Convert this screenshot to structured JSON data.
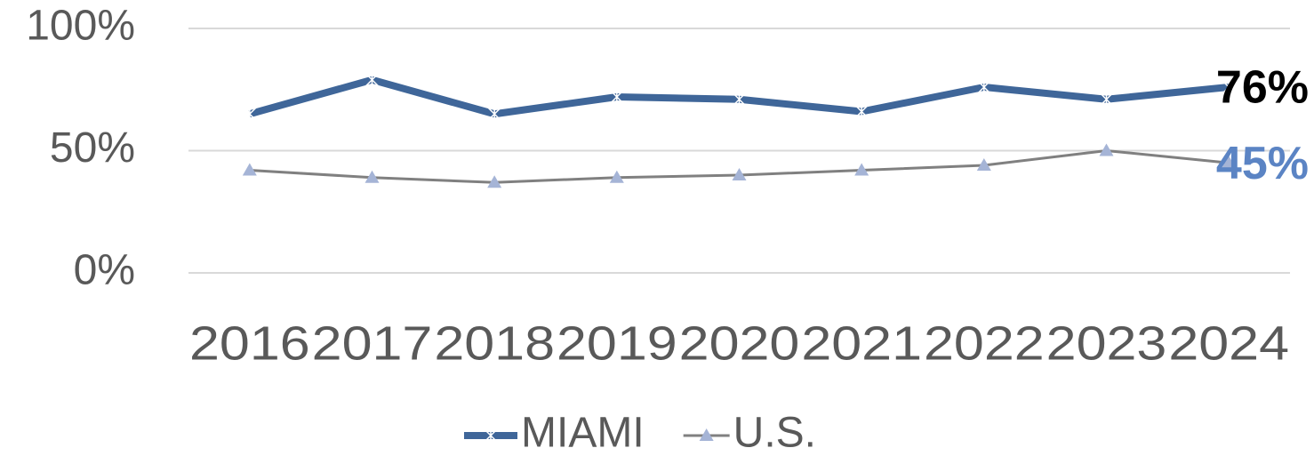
{
  "chart_data": {
    "type": "line",
    "categories": [
      "2016",
      "2017",
      "2018",
      "2019",
      "2020",
      "2021",
      "2022",
      "2023",
      "2024"
    ],
    "series": [
      {
        "name": "MIAMI",
        "color": "#3f6699",
        "marker": "star",
        "values": [
          65,
          79,
          65,
          72,
          71,
          66,
          76,
          71,
          76
        ],
        "value_labels": [
          null,
          null,
          null,
          null,
          null,
          null,
          null,
          null,
          "76%"
        ],
        "label_color": "#000000"
      },
      {
        "name": "U.S.",
        "color": "#808080",
        "marker_color": "#a5b4d6",
        "marker": "triangle",
        "values": [
          42,
          39,
          37,
          39,
          40,
          42,
          44,
          50,
          45
        ],
        "value_labels": [
          null,
          null,
          null,
          null,
          null,
          null,
          null,
          null,
          "45%"
        ],
        "label_color": "#5b84c4"
      }
    ],
    "ylim": [
      0,
      100
    ],
    "yticks": [
      {
        "value": 0,
        "label": "0%"
      },
      {
        "value": 50,
        "label": "50%"
      },
      {
        "value": 100,
        "label": "100%"
      }
    ],
    "grid": true,
    "legend": "bottom"
  }
}
